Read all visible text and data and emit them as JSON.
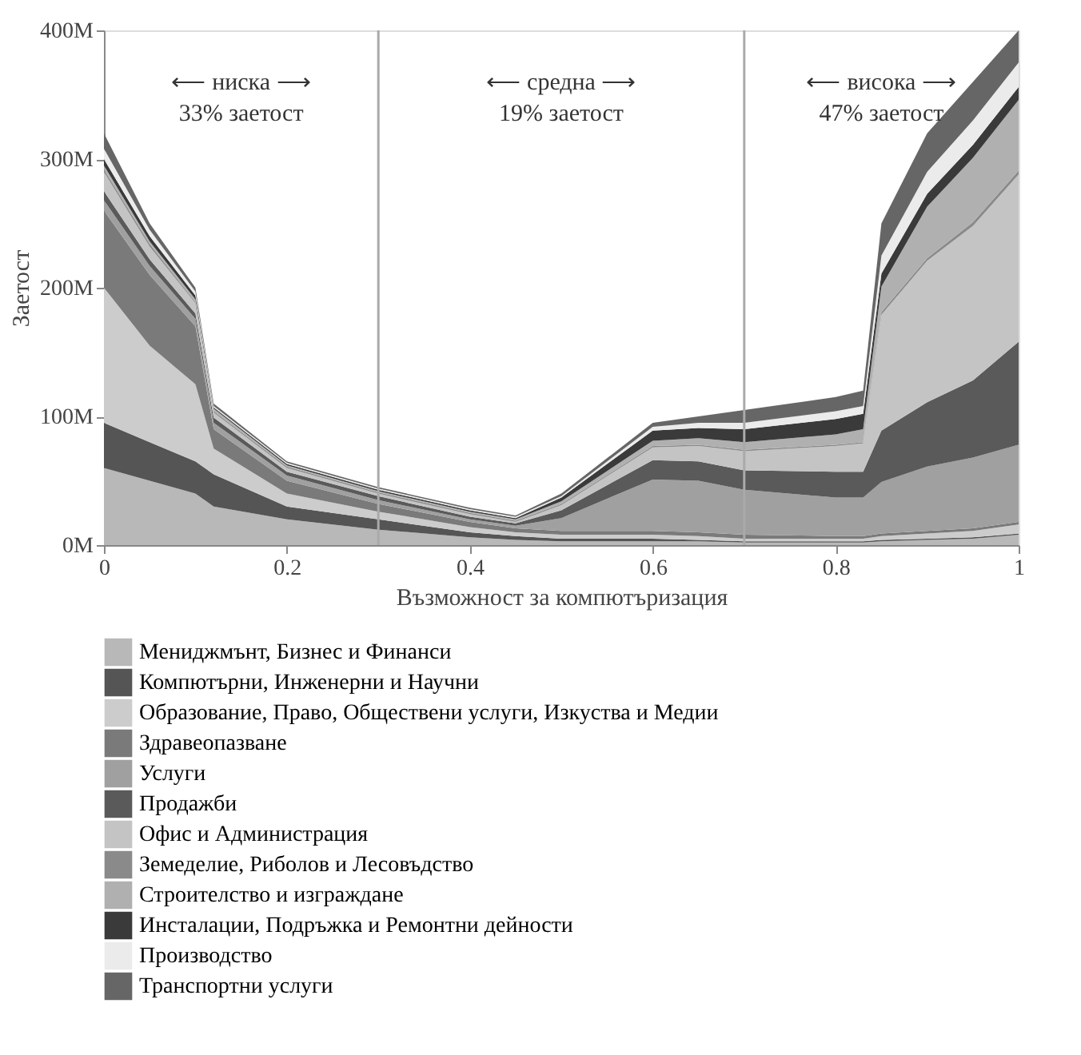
{
  "chart_data": {
    "type": "area",
    "stacked": true,
    "xlabel": "Възможност за компютъризация",
    "ylabel": "Заетост",
    "x": [
      0,
      0.05,
      0.1,
      0.12,
      0.2,
      0.3,
      0.4,
      0.45,
      0.5,
      0.6,
      0.65,
      0.7,
      0.8,
      0.83,
      0.85,
      0.9,
      0.95,
      1.0
    ],
    "xlim": [
      0,
      1
    ],
    "xticks": [
      0,
      0.2,
      0.4,
      0.6,
      0.8,
      1
    ],
    "ylim": [
      0,
      400
    ],
    "yticks": [
      {
        "value": 0,
        "label": "0M"
      },
      {
        "value": 100,
        "label": "100M"
      },
      {
        "value": 200,
        "label": "200M"
      },
      {
        "value": 300,
        "label": "300M"
      },
      {
        "value": 400,
        "label": "400M"
      }
    ],
    "series": [
      {
        "name": "Мениджмънт, Бизнес и Финанси",
        "color": "#b8b8b8",
        "values": [
          60,
          50,
          40,
          30,
          20,
          12,
          6,
          4,
          3,
          3,
          3,
          2,
          2,
          2,
          3,
          4,
          5,
          8
        ]
      },
      {
        "name": "Компютърни, Инженерни и Научни",
        "color": "#555555",
        "values": [
          35,
          30,
          25,
          25,
          10,
          8,
          4,
          3,
          2,
          2,
          1,
          1,
          1,
          1,
          1,
          1,
          1,
          1
        ]
      },
      {
        "name": "Образование, Право, Обществени услуги, Изкуства и Медии",
        "color": "#cccccc",
        "values": [
          105,
          75,
          60,
          20,
          10,
          6,
          4,
          3,
          3,
          3,
          3,
          2,
          2,
          2,
          3,
          4,
          5,
          7
        ]
      },
      {
        "name": "Здравеопазване",
        "color": "#7a7a7a",
        "values": [
          60,
          55,
          45,
          15,
          10,
          6,
          4,
          3,
          3,
          3,
          3,
          3,
          2,
          2,
          2,
          2,
          2,
          2
        ]
      },
      {
        "name": "Услуги",
        "color": "#a0a0a0",
        "values": [
          8,
          7,
          6,
          5,
          4,
          3,
          2,
          2,
          10,
          40,
          40,
          35,
          30,
          30,
          40,
          50,
          55,
          60
        ]
      },
      {
        "name": "Продажби",
        "color": "#5a5a5a",
        "values": [
          7,
          5,
          4,
          4,
          3,
          3,
          2,
          2,
          6,
          15,
          15,
          15,
          20,
          20,
          40,
          50,
          60,
          80
        ]
      },
      {
        "name": "Офис и Администрация",
        "color": "#c4c4c4",
        "values": [
          15,
          10,
          8,
          4,
          3,
          2,
          2,
          1,
          4,
          10,
          12,
          15,
          20,
          22,
          90,
          110,
          120,
          130
        ]
      },
      {
        "name": "Земеделие, Риболов и Лесовъдство",
        "color": "#8a8a8a",
        "values": [
          2,
          2,
          1,
          1,
          1,
          1,
          1,
          1,
          1,
          1,
          1,
          1,
          1,
          1,
          2,
          2,
          3,
          3
        ]
      },
      {
        "name": "Строителство и изграждане",
        "color": "#b0b0b0",
        "values": [
          3,
          2,
          2,
          2,
          1,
          1,
          1,
          1,
          2,
          4,
          5,
          6,
          8,
          10,
          20,
          40,
          50,
          55
        ]
      },
      {
        "name": "Инсталации, Подръжка и Ремонтни дейности",
        "color": "#3a3a3a",
        "values": [
          5,
          4,
          3,
          1,
          1,
          1,
          1,
          1,
          3,
          8,
          8,
          10,
          12,
          12,
          10,
          10,
          10,
          10
        ]
      },
      {
        "name": "Производство",
        "color": "#ebebeb",
        "values": [
          8,
          5,
          3,
          1,
          1,
          1,
          1,
          1,
          1,
          3,
          4,
          5,
          6,
          6,
          14,
          17,
          19,
          19
        ]
      },
      {
        "name": "Транспортни услуги",
        "color": "#666666",
        "values": [
          12,
          5,
          3,
          2,
          1,
          1,
          1,
          1,
          2,
          3,
          5,
          10,
          11,
          12,
          25,
          30,
          30,
          25
        ]
      }
    ],
    "ref_lines": [
      {
        "axis": "x",
        "value": 0.3,
        "color": "#aaaaaa"
      },
      {
        "axis": "x",
        "value": 0.7,
        "color": "#aaaaaa"
      }
    ],
    "annotations": [
      "⟵ ниска ⟶",
      "33% заетост",
      "⟵ средна ⟶",
      "19% заетост",
      "⟵ висока ⟶",
      "47% заетост"
    ],
    "legend": "bottom",
    "grid": false
  }
}
